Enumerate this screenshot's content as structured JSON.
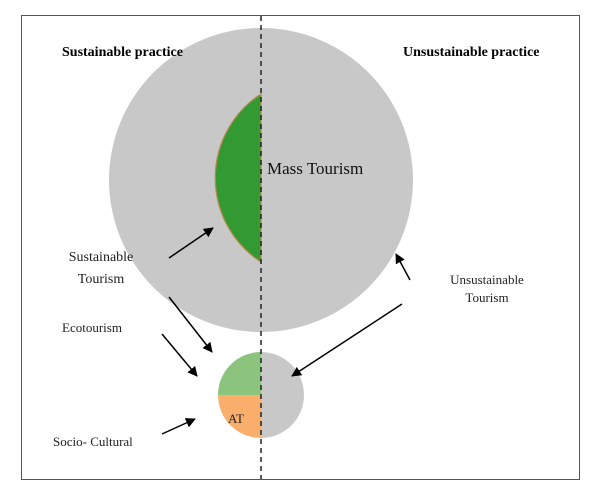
{
  "headings": {
    "left": "Sustainable practice",
    "right": "Unsustainable practice"
  },
  "labels": {
    "mass_tourism": "Mass Tourism",
    "sustainable_tourism_line1": "Sustainable",
    "sustainable_tourism_line2": "Tourism",
    "ecotourism": "Ecotourism",
    "socio_cultural": "Socio- Cultural",
    "alternative_tourism": "AT",
    "unsustainable_tourism_line1": "Unsustainable",
    "unsustainable_tourism_line2": "Tourism"
  },
  "colors": {
    "green_dark": "#339933",
    "green_light": "#8cc47e",
    "orange": "#f9ae6c",
    "grey": "#c8c8c8",
    "frame": "#555555",
    "arrow": "#000000"
  }
}
